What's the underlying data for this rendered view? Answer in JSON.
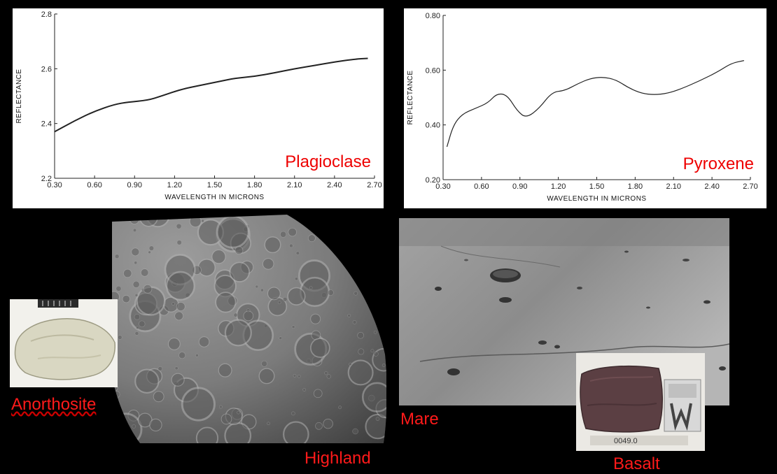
{
  "chart_data": [
    {
      "type": "line",
      "title": "",
      "annotation": "Plagioclase",
      "xlabel": "WAVELENGTH IN MICRONS",
      "ylabel": "REFLECTANCE",
      "xlim": [
        0.3,
        2.7
      ],
      "ylim": [
        2.2,
        2.8
      ],
      "x_ticks": [
        "0.30",
        "0.60",
        "0.90",
        "1.20",
        "1.50",
        "1.80",
        "2.10",
        "2.40",
        "2.70"
      ],
      "y_ticks": [
        "2.2",
        "2.4",
        "2.6",
        "2.8"
      ],
      "series": [
        {
          "x": [
            0.3,
            0.45,
            0.6,
            0.75,
            0.85,
            1.0,
            1.1,
            1.25,
            1.4,
            1.55,
            1.65,
            1.8,
            1.95,
            2.1,
            2.25,
            2.4,
            2.55,
            2.65
          ],
          "y": [
            2.37,
            2.41,
            2.445,
            2.47,
            2.478,
            2.485,
            2.5,
            2.525,
            2.54,
            2.555,
            2.565,
            2.572,
            2.585,
            2.6,
            2.612,
            2.625,
            2.635,
            2.638
          ]
        }
      ]
    },
    {
      "type": "line",
      "title": "",
      "annotation": "Pyroxene",
      "xlabel": "WAVELENGTH IN MICRONS",
      "ylabel": "REFLECTANCE",
      "xlim": [
        0.3,
        2.7
      ],
      "ylim": [
        0.2,
        0.8
      ],
      "x_ticks": [
        "0.30",
        "0.60",
        "0.90",
        "1.20",
        "1.50",
        "1.80",
        "2.10",
        "2.40",
        "2.70"
      ],
      "y_ticks": [
        "0.20",
        "0.40",
        "0.60",
        "0.80"
      ],
      "series": [
        {
          "x": [
            0.33,
            0.38,
            0.45,
            0.55,
            0.65,
            0.72,
            0.8,
            0.88,
            0.95,
            1.05,
            1.15,
            1.25,
            1.35,
            1.45,
            1.55,
            1.65,
            1.75,
            1.85,
            1.95,
            2.05,
            2.15,
            2.3,
            2.45,
            2.55,
            2.65
          ],
          "y": [
            0.32,
            0.4,
            0.44,
            0.46,
            0.48,
            0.515,
            0.51,
            0.45,
            0.425,
            0.46,
            0.52,
            0.525,
            0.55,
            0.57,
            0.575,
            0.565,
            0.535,
            0.515,
            0.51,
            0.515,
            0.53,
            0.56,
            0.595,
            0.625,
            0.635
          ]
        }
      ]
    }
  ],
  "labels": {
    "anorthosite": "Anorthosite",
    "highland": "Highland",
    "mare": "Mare",
    "basalt": "Basalt"
  },
  "photo_text": {
    "basalt_sample_tag": "0049.0"
  }
}
